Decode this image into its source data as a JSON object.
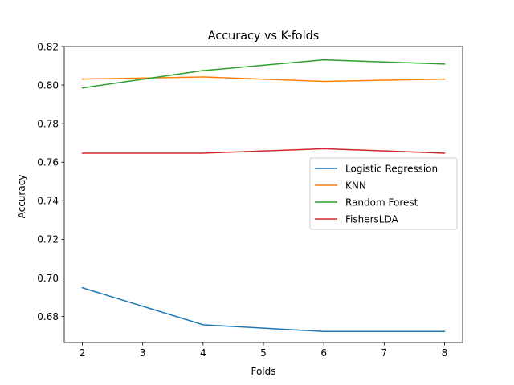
{
  "chart_data": {
    "type": "line",
    "title": "Accuracy vs K-folds",
    "xlabel": "Folds",
    "ylabel": "Accuracy",
    "x": [
      2,
      4,
      6,
      8
    ],
    "xlim": [
      1.7,
      8.3
    ],
    "ylim": [
      0.6665,
      0.82
    ],
    "xticks": [
      "2",
      "3",
      "4",
      "5",
      "6",
      "7",
      "8"
    ],
    "yticks": [
      "0.68",
      "0.70",
      "0.72",
      "0.74",
      "0.76",
      "0.78",
      "0.80",
      "0.82"
    ],
    "grid": false,
    "legend_position": "center-right",
    "series": [
      {
        "name": "Logistic Regression",
        "color": "#1f77b4",
        "values": [
          0.6949,
          0.6757,
          0.6722,
          0.6722
        ]
      },
      {
        "name": "KNN",
        "color": "#ff7f0e",
        "values": [
          0.8031,
          0.8042,
          0.8019,
          0.8031
        ]
      },
      {
        "name": "Random Forest",
        "color": "#2ca02c",
        "values": [
          0.7985,
          0.8075,
          0.8131,
          0.8109
        ]
      },
      {
        "name": "FishersLDA",
        "color": "#d62728",
        "values": [
          0.7647,
          0.7647,
          0.767,
          0.7647
        ]
      }
    ]
  }
}
